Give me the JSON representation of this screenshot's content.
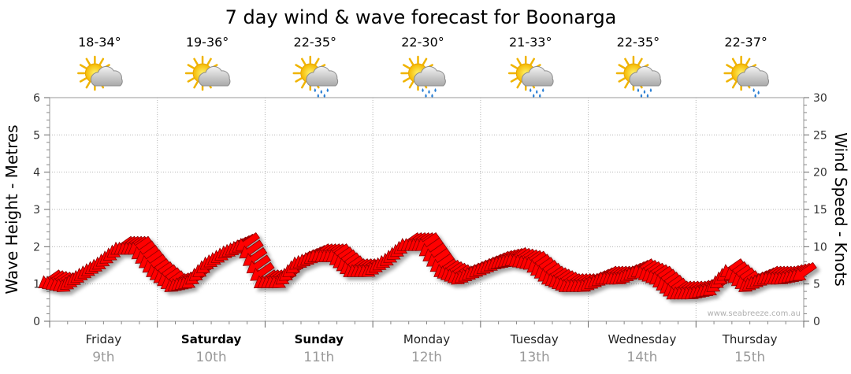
{
  "chart_data": {
    "type": "line",
    "title": "7 day wind & wave forecast for Boonarga",
    "ylabel_left": "Wave Height - Metres",
    "ylabel_right": "Wind Speed - Knots",
    "ylim_left": [
      0,
      6
    ],
    "ylim_right": [
      0,
      30
    ],
    "yticks_left": [
      "0",
      "1",
      "2",
      "3",
      "4",
      "5",
      "6"
    ],
    "yticks_right": [
      "0",
      "5",
      "10",
      "15",
      "20",
      "25",
      "30"
    ],
    "grid": true,
    "credit": "www.seabreeze.com.au",
    "days": [
      {
        "name": "Friday",
        "date": "9th",
        "bold": false,
        "temp": "18-34°",
        "weather": "partly-cloudy"
      },
      {
        "name": "Saturday",
        "date": "10th",
        "bold": true,
        "temp": "19-36°",
        "weather": "partly-cloudy"
      },
      {
        "name": "Sunday",
        "date": "11th",
        "bold": true,
        "temp": "22-35°",
        "weather": "showers"
      },
      {
        "name": "Monday",
        "date": "12th",
        "bold": false,
        "temp": "22-30°",
        "weather": "showers"
      },
      {
        "name": "Tuesday",
        "date": "13th",
        "bold": false,
        "temp": "21-33°",
        "weather": "showers"
      },
      {
        "name": "Wednesday",
        "date": "14th",
        "bold": false,
        "temp": "22-35°",
        "weather": "showers"
      },
      {
        "name": "Thursday",
        "date": "15th",
        "bold": false,
        "temp": "22-37°",
        "weather": "light-showers"
      }
    ],
    "series": [
      {
        "name": "Wind speed (knots)",
        "color": "#ff0000",
        "x_days": [
          0,
          0.17,
          0.33,
          0.5,
          0.67,
          0.83,
          1.0,
          1.17,
          1.33,
          1.5,
          1.67,
          1.83,
          2.0,
          2.17,
          2.33,
          2.5,
          2.67,
          2.83,
          3.0,
          3.17,
          3.33,
          3.5,
          3.67,
          3.83,
          4.0,
          4.17,
          4.33,
          4.5,
          4.67,
          4.83,
          5.0,
          5.17,
          5.33,
          5.5,
          5.67,
          5.83,
          6.0,
          6.17,
          6.33,
          6.5,
          6.67,
          6.83,
          7.0
        ],
        "values": [
          5.5,
          5,
          6.5,
          8,
          10,
          10,
          7,
          5,
          5.5,
          8,
          9.5,
          10.5,
          5.5,
          5.5,
          8,
          9,
          9,
          7,
          7,
          8.5,
          10.5,
          10.5,
          7,
          6,
          7,
          8,
          8.5,
          8,
          6,
          5,
          5,
          6,
          6,
          7,
          6,
          4,
          4,
          4.5,
          7,
          5,
          6,
          6,
          6.5
        ]
      }
    ],
    "wind_direction_note": "arrows point toward south-west (wind from north-east)"
  }
}
